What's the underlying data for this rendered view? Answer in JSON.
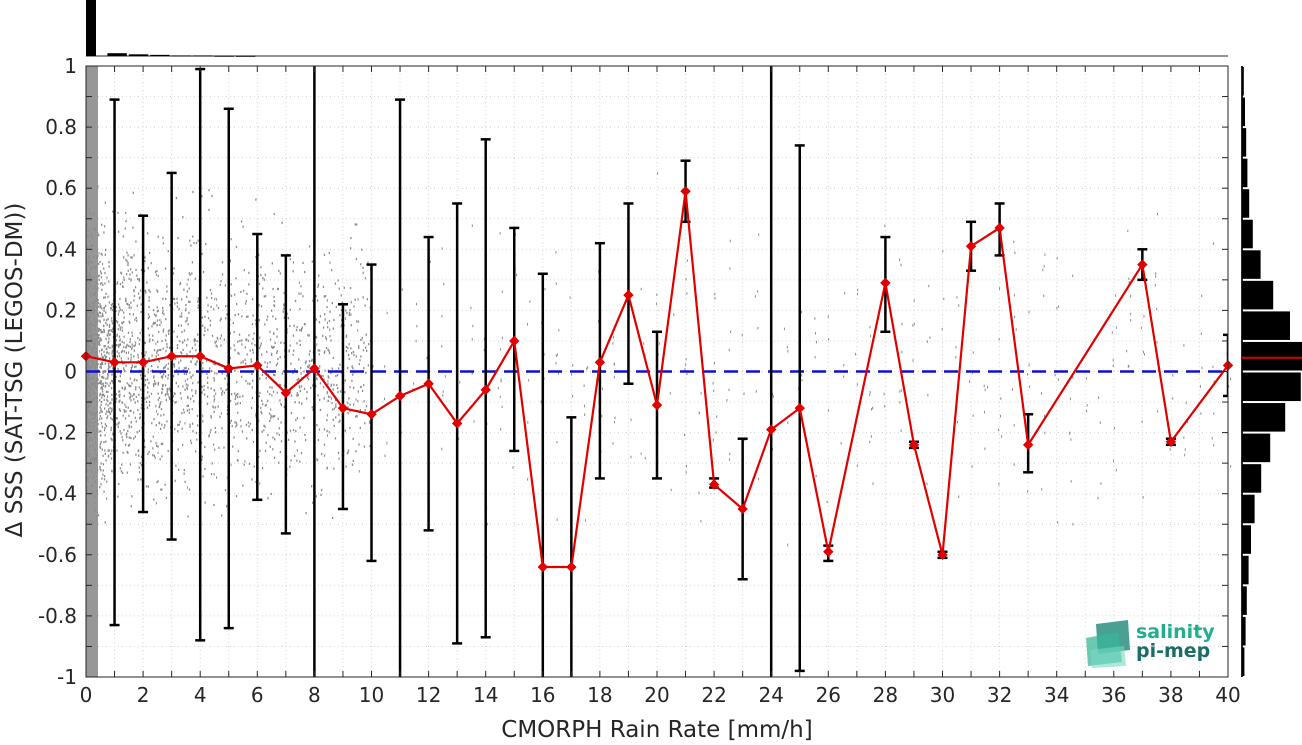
{
  "chart_data": {
    "type": "scatter",
    "xlabel": "CMORPH Rain Rate [mm/h]",
    "ylabel": "Δ SSS (SAT-TSG (LEGOS-DM))",
    "xlim": [
      0,
      40
    ],
    "ylim": [
      -1,
      1
    ],
    "x_ticks": [
      "0",
      "2",
      "4",
      "6",
      "8",
      "10",
      "12",
      "14",
      "16",
      "18",
      "20",
      "22",
      "24",
      "26",
      "28",
      "30",
      "32",
      "34",
      "36",
      "38",
      "40"
    ],
    "y_ticks": [
      "-1",
      "-0.8",
      "-0.6",
      "-0.4",
      "-0.2",
      "0",
      "0.2",
      "0.4",
      "0.6",
      "0.8",
      "1"
    ],
    "grid": "dotted",
    "reference_line": {
      "y": 0,
      "color": "#1010d0",
      "style": "dashed"
    },
    "mean_series": {
      "color": "#e00000",
      "points": [
        {
          "x": 0,
          "y": 0.05,
          "err_low": null,
          "err_high": null
        },
        {
          "x": 1,
          "y": 0.03,
          "err_low": -0.83,
          "err_high": 0.89
        },
        {
          "x": 2,
          "y": 0.03,
          "err_low": -0.46,
          "err_high": 0.51
        },
        {
          "x": 3,
          "y": 0.05,
          "err_low": -0.55,
          "err_high": 0.65
        },
        {
          "x": 4,
          "y": 0.05,
          "err_low": -0.88,
          "err_high": 0.99
        },
        {
          "x": 5,
          "y": 0.01,
          "err_low": -0.84,
          "err_high": 0.86
        },
        {
          "x": 6,
          "y": 0.02,
          "err_low": -0.42,
          "err_high": 0.45
        },
        {
          "x": 7,
          "y": -0.07,
          "err_low": -0.53,
          "err_high": 0.38
        },
        {
          "x": 8,
          "y": 0.01,
          "err_low": -1.05,
          "err_high": 1.05
        },
        {
          "x": 9,
          "y": -0.12,
          "err_low": -0.45,
          "err_high": 0.22
        },
        {
          "x": 10,
          "y": -0.14,
          "err_low": -0.62,
          "err_high": 0.35
        },
        {
          "x": 11,
          "y": -0.08,
          "err_low": -1.05,
          "err_high": 0.89
        },
        {
          "x": 12,
          "y": -0.04,
          "err_low": -0.52,
          "err_high": 0.44
        },
        {
          "x": 13,
          "y": -0.17,
          "err_low": -0.89,
          "err_high": 0.55
        },
        {
          "x": 14,
          "y": -0.06,
          "err_low": -0.87,
          "err_high": 0.76
        },
        {
          "x": 15,
          "y": 0.1,
          "err_low": -0.26,
          "err_high": 0.47
        },
        {
          "x": 16,
          "y": -0.64,
          "err_low": -1.05,
          "err_high": 0.32
        },
        {
          "x": 17,
          "y": -0.64,
          "err_low": -1.05,
          "err_high": -0.15
        },
        {
          "x": 18,
          "y": 0.03,
          "err_low": -0.35,
          "err_high": 0.42
        },
        {
          "x": 19,
          "y": 0.25,
          "err_low": -0.04,
          "err_high": 0.55
        },
        {
          "x": 20,
          "y": -0.11,
          "err_low": -0.35,
          "err_high": 0.13
        },
        {
          "x": 21,
          "y": 0.59,
          "err_low": 0.49,
          "err_high": 0.69
        },
        {
          "x": 22,
          "y": -0.37,
          "err_low": -0.38,
          "err_high": -0.35
        },
        {
          "x": 23,
          "y": -0.45,
          "err_low": -0.68,
          "err_high": -0.22
        },
        {
          "x": 24,
          "y": -0.19,
          "err_low": -1.05,
          "err_high": 1.05
        },
        {
          "x": 25,
          "y": -0.12,
          "err_low": -0.98,
          "err_high": 0.74
        },
        {
          "x": 26,
          "y": -0.59,
          "err_low": -0.62,
          "err_high": -0.57
        },
        {
          "x": 28,
          "y": 0.29,
          "err_low": 0.13,
          "err_high": 0.44
        },
        {
          "x": 29,
          "y": -0.24,
          "err_low": -0.25,
          "err_high": -0.23
        },
        {
          "x": 30,
          "y": -0.6,
          "err_low": -0.61,
          "err_high": -0.59
        },
        {
          "x": 31,
          "y": 0.41,
          "err_low": 0.33,
          "err_high": 0.49
        },
        {
          "x": 32,
          "y": 0.47,
          "err_low": 0.38,
          "err_high": 0.55
        },
        {
          "x": 33,
          "y": -0.24,
          "err_low": -0.33,
          "err_high": -0.14
        },
        {
          "x": 37,
          "y": 0.35,
          "err_low": 0.3,
          "err_high": 0.4
        },
        {
          "x": 38,
          "y": -0.23,
          "err_low": -0.24,
          "err_high": -0.22
        },
        {
          "x": 40,
          "y": 0.02,
          "err_low": -0.08,
          "err_high": 0.12
        }
      ]
    },
    "top_histogram": {
      "x_bin_counts": [
        1.0,
        0.05,
        0.03,
        0.02,
        0.01,
        0.01,
        0.005,
        0.004
      ]
    },
    "right_histogram": {
      "bins": [
        {
          "y": 0.95,
          "count": 0.03
        },
        {
          "y": 0.85,
          "count": 0.05
        },
        {
          "y": 0.75,
          "count": 0.07
        },
        {
          "y": 0.65,
          "count": 0.09
        },
        {
          "y": 0.55,
          "count": 0.12
        },
        {
          "y": 0.45,
          "count": 0.18
        },
        {
          "y": 0.35,
          "count": 0.31
        },
        {
          "y": 0.25,
          "count": 0.52
        },
        {
          "y": 0.15,
          "count": 0.8
        },
        {
          "y": 0.05,
          "count": 1.0
        },
        {
          "y": -0.05,
          "count": 0.98
        },
        {
          "y": -0.15,
          "count": 0.72
        },
        {
          "y": -0.25,
          "count": 0.47
        },
        {
          "y": -0.35,
          "count": 0.32
        },
        {
          "y": -0.45,
          "count": 0.21
        },
        {
          "y": -0.55,
          "count": 0.15
        },
        {
          "y": -0.65,
          "count": 0.11
        },
        {
          "y": -0.75,
          "count": 0.08
        },
        {
          "y": -0.85,
          "count": 0.06
        },
        {
          "y": -0.95,
          "count": 0.04
        }
      ],
      "median_marker_y": 0.045,
      "median_color": "#e00000"
    },
    "scatter_color": "#8c8c8c"
  },
  "logo": {
    "line1": "salinity",
    "line2": "pi-mep",
    "color1": "#1fae8f",
    "color2": "#1a6e66"
  }
}
